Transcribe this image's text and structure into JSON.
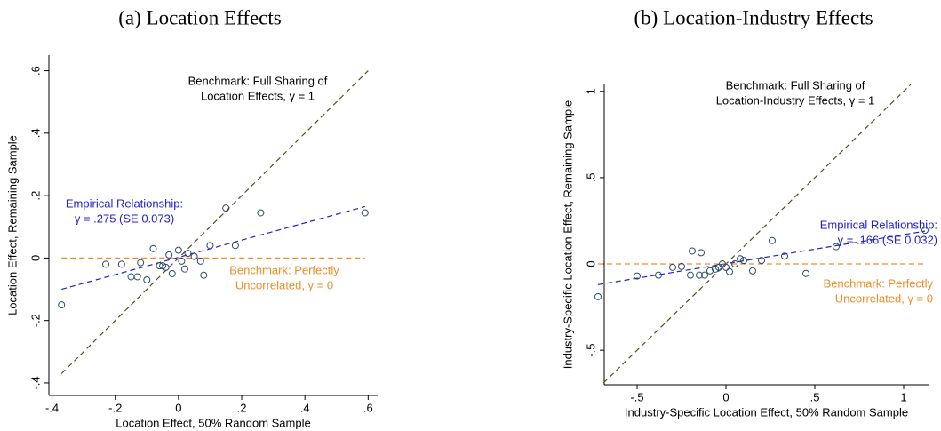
{
  "chart_data": [
    {
      "type": "scatter",
      "title": "(a) Location Effects",
      "x_label": "Location Effect, 50% Random Sample",
      "y_label": "Location Effect, Remaining Sample",
      "x": [
        -0.37,
        -0.23,
        -0.18,
        -0.15,
        -0.13,
        -0.12,
        -0.1,
        -0.08,
        -0.06,
        -0.05,
        -0.04,
        -0.03,
        -0.02,
        0,
        0.01,
        0.02,
        0.03,
        0.05,
        0.07,
        0.08,
        0.1,
        0.15,
        0.18,
        0.26,
        0.59
      ],
      "y": [
        -0.15,
        -0.02,
        -0.02,
        -0.06,
        -0.06,
        -0.015,
        -0.07,
        0.03,
        -0.025,
        -0.025,
        -0.03,
        0.01,
        -0.05,
        0.025,
        -0.01,
        -0.035,
        0.015,
        0.005,
        -0.01,
        -0.055,
        0.04,
        0.16,
        0.04,
        0.145,
        0.145
      ],
      "point_color": "#2b4a6e",
      "xlim": [
        -0.41,
        0.63
      ],
      "ylim": [
        -0.44,
        0.65
      ],
      "xticks": [
        {
          "value": -0.4,
          "label": "-.4"
        },
        {
          "value": -0.2,
          "label": "-.2"
        },
        0,
        {
          "value": 0.2,
          "label": ".2"
        },
        {
          "value": 0.4,
          "label": ".4"
        },
        {
          "value": 0.6,
          "label": ".6"
        }
      ],
      "yticks": [
        {
          "value": -0.4,
          "label": "-.4"
        },
        {
          "value": -0.2,
          "label": "-.2"
        },
        0,
        {
          "value": 0.2,
          "label": ".2"
        },
        {
          "value": 0.4,
          "label": ".4"
        },
        {
          "value": 0.6,
          "label": ".6"
        }
      ],
      "lines": [
        {
          "x": [
            -0.37,
            0.6
          ],
          "y": [
            -0.37,
            0.6
          ],
          "color": "#5c4a1e"
        },
        {
          "x": [
            -0.37,
            0.59
          ],
          "y": [
            -0.1,
            0.165
          ],
          "color": "#2020d0"
        },
        {
          "x": [
            -0.37,
            0.59
          ],
          "y": [
            0,
            0
          ],
          "color": "#f28c28"
        }
      ],
      "annotations": [
        {
          "lines": [
            "Benchmark: Full Sharing of",
            "Location Effects, γ = 1"
          ],
          "color": "#000000"
        },
        {
          "lines": [
            "Empirical Relationship:",
            "γ = .275 (SE 0.073)"
          ],
          "color": "#2020d0"
        },
        {
          "lines": [
            "Benchmark: Perfectly",
            "Uncorrelated, γ = 0"
          ],
          "color": "#f28c28"
        }
      ]
    },
    {
      "type": "scatter",
      "title": "(b) Location-Industry Effects",
      "x_label": "Industry-Specific Location Effect, 50% Random Sample",
      "y_label": "Industry-Specific Location Effect, Remaining Sample",
      "x": [
        -0.72,
        -0.5,
        -0.38,
        -0.3,
        -0.25,
        -0.2,
        -0.19,
        -0.15,
        -0.14,
        -0.12,
        -0.09,
        -0.06,
        -0.04,
        -0.02,
        0,
        0.02,
        0.05,
        0.08,
        0.1,
        0.15,
        0.2,
        0.26,
        0.33,
        0.45,
        0.62,
        1.12
      ],
      "y": [
        -0.19,
        -0.07,
        -0.065,
        -0.02,
        -0.015,
        -0.065,
        0.075,
        -0.065,
        0.065,
        -0.065,
        -0.04,
        -0.03,
        -0.02,
        0,
        -0.02,
        -0.045,
        0,
        0.03,
        0.02,
        -0.04,
        0.02,
        0.135,
        0.045,
        -0.055,
        0.1,
        0.195
      ],
      "point_color": "#2b4a6e",
      "xlim": [
        -0.685,
        1.14
      ],
      "ylim": [
        -0.7,
        1.04
      ],
      "xticks": [
        {
          "value": -0.5,
          "label": "-.5"
        },
        0,
        {
          "value": 0.5,
          "label": ".5"
        },
        1
      ],
      "yticks": [
        {
          "value": -0.5,
          "label": "-.5"
        },
        0,
        {
          "value": 0.5,
          "label": ".5"
        },
        1
      ],
      "lines": [
        {
          "x": [
            -0.69,
            1.04
          ],
          "y": [
            -0.69,
            1.04
          ],
          "color": "#5c4a1e"
        },
        {
          "x": [
            -0.72,
            1.12
          ],
          "y": [
            -0.12,
            0.19
          ],
          "color": "#2020d0"
        },
        {
          "x": [
            -0.72,
            1.12
          ],
          "y": [
            0,
            0
          ],
          "color": "#f28c28"
        }
      ],
      "annotations": [
        {
          "lines": [
            "Benchmark: Full Sharing of",
            "Location-Industry Effects, γ = 1"
          ],
          "color": "#000000"
        },
        {
          "lines": [
            "Empirical Relationship:",
            "γ = .166 (SE 0.032)"
          ],
          "color": "#2020d0"
        },
        {
          "lines": [
            "Benchmark: Perfectly",
            "Uncorrelated, γ = 0"
          ],
          "color": "#f28c28"
        }
      ]
    }
  ]
}
